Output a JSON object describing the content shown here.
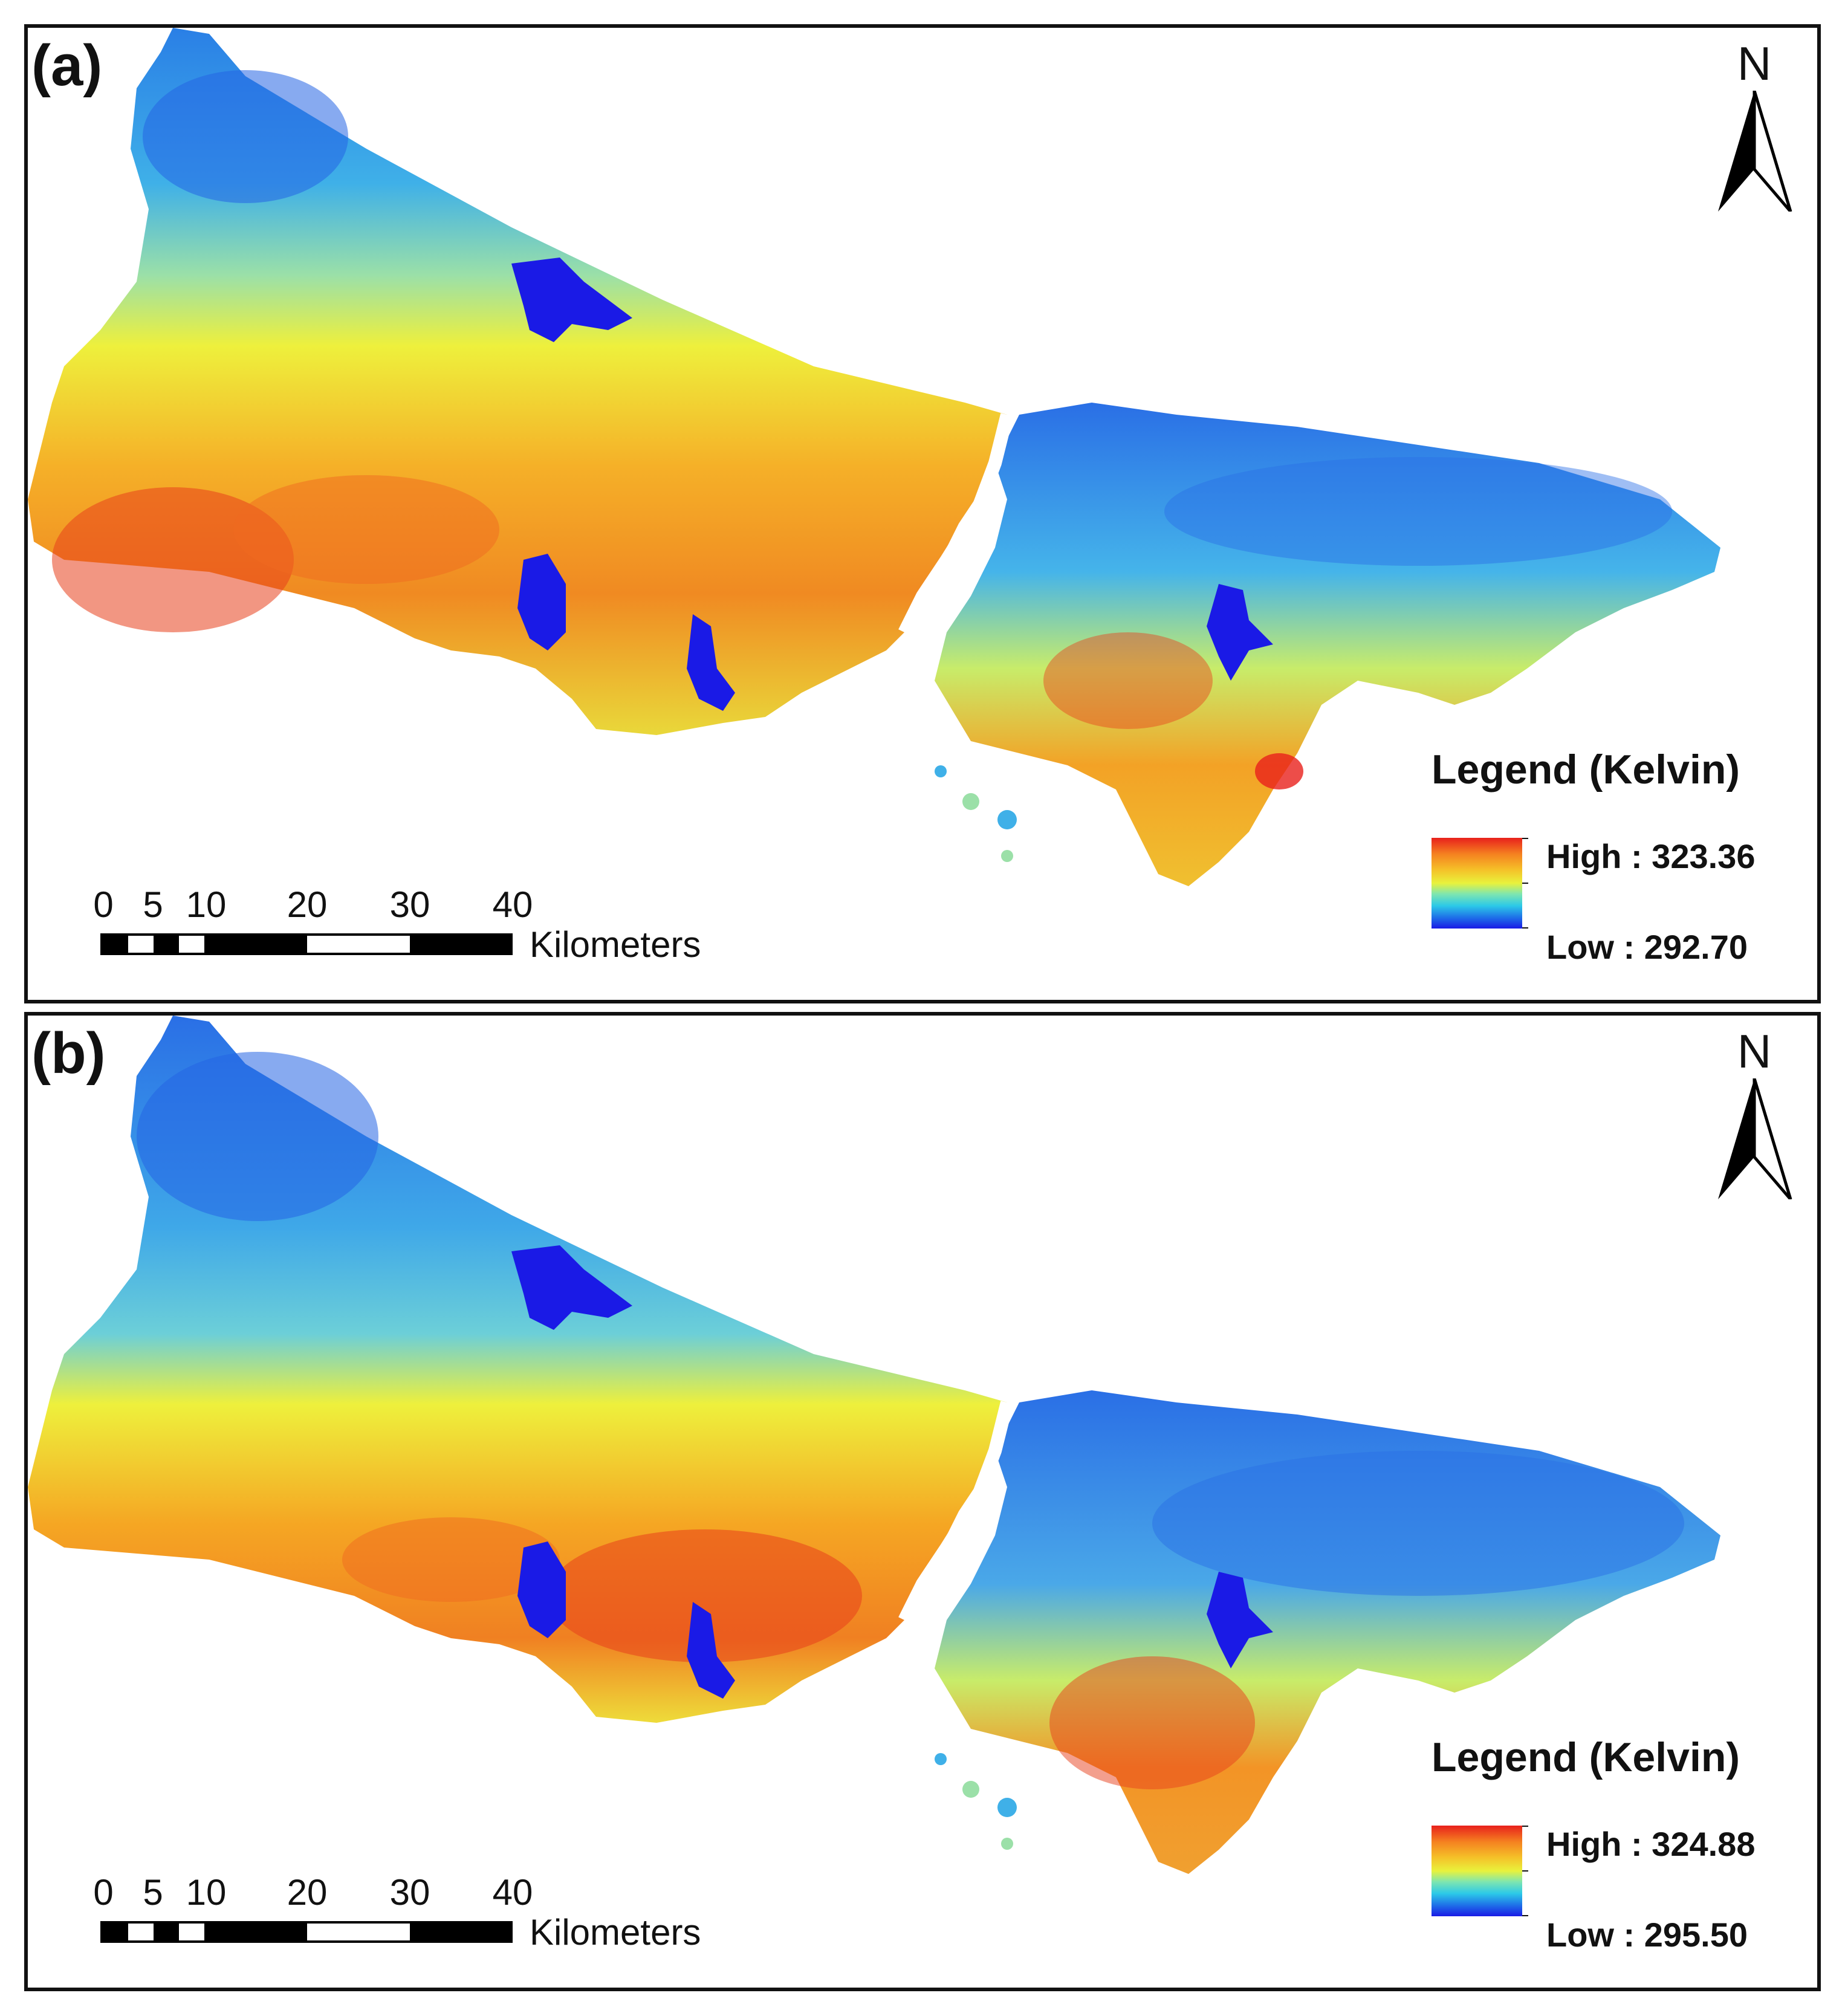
{
  "panels": [
    {
      "label": "(a)",
      "north": "N",
      "legend": {
        "title": "Legend (Kelvin)",
        "high": "High : 323.36",
        "low": "Low : 292.70"
      },
      "scale": {
        "ticks": [
          "0",
          "5",
          "10",
          "20",
          "30",
          "40"
        ],
        "unit": "Kilometers"
      }
    },
    {
      "label": "(b)",
      "north": "N",
      "legend": {
        "title": "Legend (Kelvin)",
        "high": "High : 324.88",
        "low": "Low : 295.50"
      },
      "scale": {
        "ticks": [
          "0",
          "5",
          "10",
          "20",
          "30",
          "40"
        ],
        "unit": "Kilometers"
      }
    }
  ],
  "colors": {
    "high": "#e8201c",
    "mid_high": "#f5a623",
    "mid": "#e9f23c",
    "mid_low": "#2cc9e8",
    "low": "#1a1ae6",
    "water": "#1a1ae6"
  }
}
